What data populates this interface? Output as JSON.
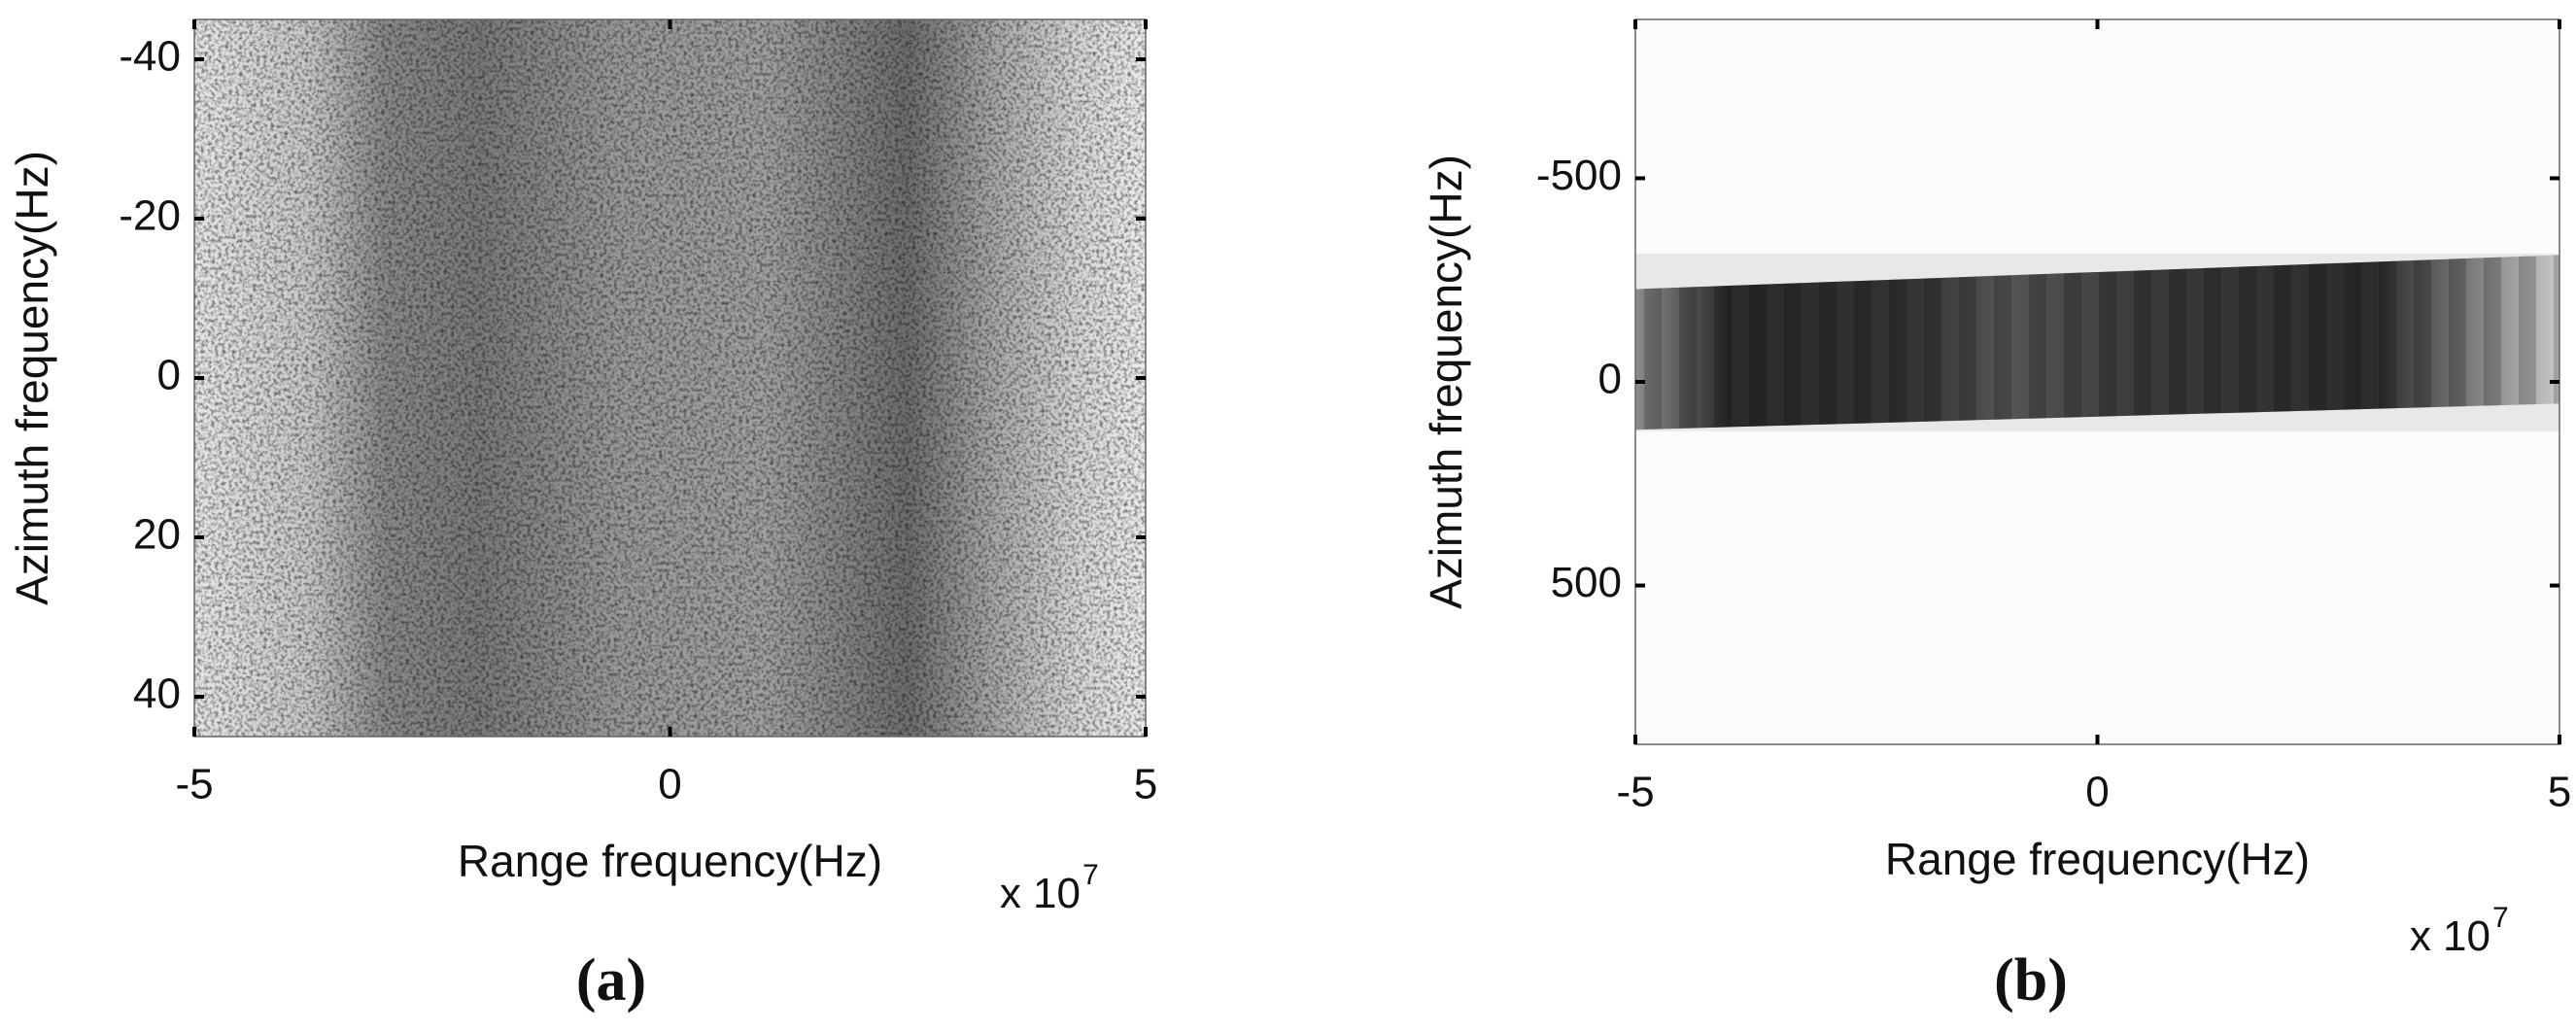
{
  "chart_data": [
    {
      "type": "image",
      "xlabel": "Range frequency(Hz)",
      "ylabel": "Azimuth frequency(Hz)",
      "x_multiplier": {
        "base": "x 10",
        "exponent": "7"
      },
      "panel_label": "(a)",
      "xlim": [
        -5,
        5
      ],
      "xticks": [
        -5,
        0,
        5
      ],
      "ylim": [
        -45,
        45
      ],
      "yticks": [
        -40,
        -20,
        0,
        20,
        40
      ],
      "y_direction": "reverse",
      "colormap": "gray",
      "grid": false
    },
    {
      "type": "image",
      "xlabel": "Range frequency(Hz)",
      "ylabel": "Azimuth frequency(Hz)",
      "x_multiplier": {
        "base": "x 10",
        "exponent": "7"
      },
      "panel_label": "(b)",
      "xlim": [
        -5,
        5
      ],
      "xticks": [
        -5,
        0,
        5
      ],
      "ylim": [
        -890,
        890
      ],
      "yticks": [
        -500,
        0,
        500
      ],
      "y_direction": "reverse",
      "colormap": "gray",
      "grid": false
    }
  ]
}
